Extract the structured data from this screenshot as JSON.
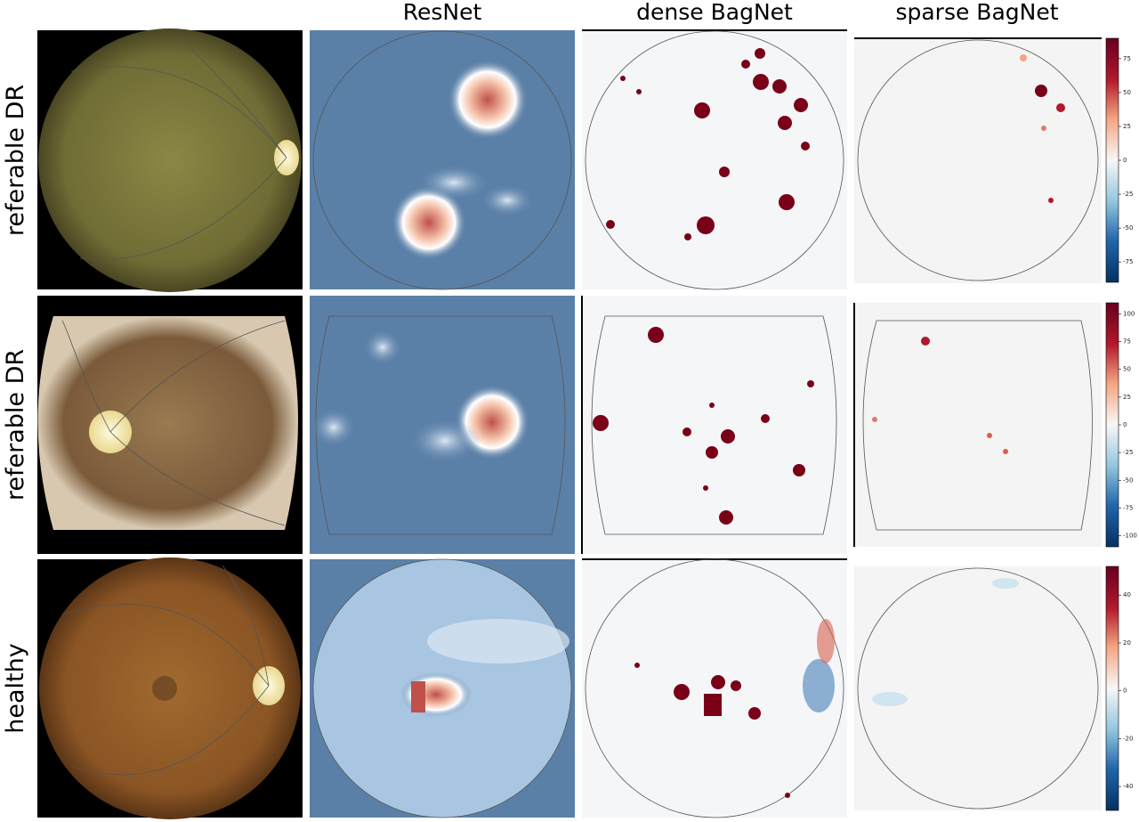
{
  "columns": [
    "ResNet",
    "dense BagNet",
    "sparse BagNet"
  ],
  "rows": [
    {
      "label": "referable DR"
    },
    {
      "label": "referable DR"
    },
    {
      "label": "healthy"
    }
  ],
  "colorbars": [
    {
      "range": [
        -90,
        90
      ],
      "ticks": [
        75,
        50,
        25,
        0,
        -25,
        -50,
        -75
      ]
    },
    {
      "range": [
        -110,
        110
      ],
      "ticks": [
        100,
        75,
        50,
        25,
        0,
        -25,
        -50,
        -75,
        -100
      ]
    },
    {
      "range": [
        -50,
        52
      ],
      "ticks": [
        40,
        20,
        0,
        -20,
        -40
      ]
    }
  ]
}
